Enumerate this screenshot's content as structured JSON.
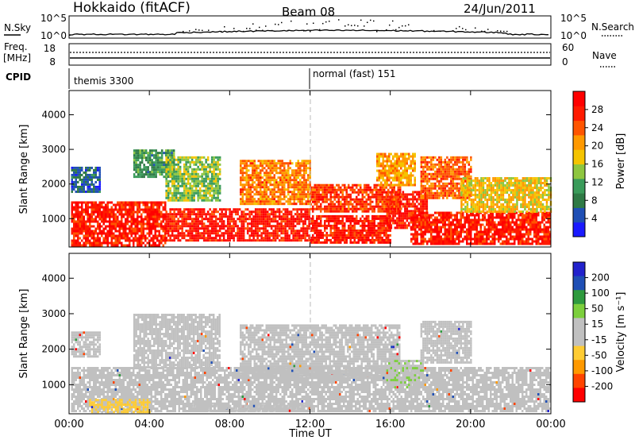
{
  "header": {
    "station": "Hokkaido (fitACF)",
    "beam": "Beam 08",
    "date": "24/Jun/2011"
  },
  "noise_panel": {
    "left_label": "N.Sky",
    "right_label": "N.Search",
    "left_ticks": [
      "10^5",
      "10^0"
    ],
    "right_ticks": [
      "10^5",
      "10^0"
    ]
  },
  "freq_panel": {
    "left_label_1": "Freq.",
    "left_label_2": "[MHz]",
    "right_label": "Nave",
    "left_ticks": [
      "18",
      "8"
    ],
    "right_ticks": [
      "60",
      "0"
    ]
  },
  "cpid_panel": {
    "label": "CPID",
    "modes": [
      {
        "text": "themis 3300",
        "start_hour": 0
      },
      {
        "text": "normal (fast) 151",
        "start_hour": 12
      }
    ]
  },
  "time_axis": {
    "label": "Time UT",
    "ticks": [
      "00:00",
      "04:00",
      "08:00",
      "12:00",
      "16:00",
      "20:00",
      "00:00"
    ],
    "tick_hours": [
      0,
      4,
      8,
      12,
      16,
      20,
      24
    ],
    "range_hours": [
      0,
      24
    ]
  },
  "colors": {
    "power": [
      "#1a1aff",
      "#1f4fb5",
      "#2f7a45",
      "#3a9b5a",
      "#8ec63f",
      "#f5c400",
      "#ff9900",
      "#ff5500",
      "#ff1a00",
      "#ff0000"
    ],
    "velocity": [
      "#ff0000",
      "#ff4400",
      "#ff9900",
      "#ffcc33",
      "#c0c0c0",
      "#c0c0c0",
      "#7ccf3c",
      "#2e9a3e",
      "#1f4fb5",
      "#2222cc"
    ],
    "gray": "#c0c0c0",
    "dash_line": "#bbbbbb"
  },
  "chart_data": [
    {
      "type": "heatmap",
      "quantity": "Power",
      "ylabel": "Slant Range [km]",
      "yticks": [
        "1000",
        "2000",
        "3000",
        "4000"
      ],
      "ytick_values": [
        1000,
        2000,
        3000,
        4000
      ],
      "ylim": [
        180,
        4700
      ],
      "xlim_hours": [
        0,
        24
      ],
      "colorbar": {
        "label": "Power [dB]",
        "ticks": [
          "4",
          "8",
          "12",
          "16",
          "20",
          "24",
          "28"
        ],
        "tick_values": [
          4,
          8,
          12,
          16,
          20,
          24,
          28
        ],
        "range": [
          0,
          32
        ]
      },
      "regions": [
        {
          "t0": 0.1,
          "t1": 4.8,
          "r0": 250,
          "r1": 1500,
          "level": 28
        },
        {
          "t0": 4.8,
          "t1": 12.0,
          "r0": 350,
          "r1": 1300,
          "level": 28
        },
        {
          "t0": 12.0,
          "t1": 16.0,
          "r0": 300,
          "r1": 1100,
          "level": 28
        },
        {
          "t0": 15.8,
          "t1": 17.8,
          "r0": 700,
          "r1": 1800,
          "level": 28
        },
        {
          "t0": 17.0,
          "t1": 24.0,
          "r0": 250,
          "r1": 1200,
          "level": 28
        },
        {
          "t0": 0.1,
          "t1": 1.5,
          "r0": 1800,
          "r1": 2500,
          "level": 6
        },
        {
          "t0": 3.2,
          "t1": 5.2,
          "r0": 2200,
          "r1": 3000,
          "level": 10
        },
        {
          "t0": 4.8,
          "t1": 7.5,
          "r0": 1500,
          "r1": 2800,
          "level": 14
        },
        {
          "t0": 8.5,
          "t1": 12.0,
          "r0": 1400,
          "r1": 2700,
          "level": 22
        },
        {
          "t0": 12.0,
          "t1": 16.5,
          "r0": 1200,
          "r1": 2000,
          "level": 26
        },
        {
          "t0": 15.3,
          "t1": 17.2,
          "r0": 2000,
          "r1": 2900,
          "level": 20
        },
        {
          "t0": 17.5,
          "t1": 20.0,
          "r0": 1600,
          "r1": 2800,
          "level": 24
        },
        {
          "t0": 19.5,
          "t1": 24.0,
          "r0": 1200,
          "r1": 2200,
          "level": 18
        }
      ]
    },
    {
      "type": "heatmap",
      "quantity": "Velocity",
      "ylabel": "Slant Range [km]",
      "yticks": [
        "1000",
        "2000",
        "3000",
        "4000"
      ],
      "ytick_values": [
        1000,
        2000,
        3000,
        4000
      ],
      "ylim": [
        180,
        4700
      ],
      "xlim_hours": [
        0,
        24
      ],
      "colorbar": {
        "label": "Velocity [m s⁻¹]",
        "ticks": [
          "200",
          "100",
          "50",
          "15",
          "-15",
          "-50",
          "-100",
          "-200"
        ],
        "tick_values": [
          200,
          100,
          50,
          15,
          -15,
          -50,
          -100,
          -200
        ],
        "range": [
          -250,
          250
        ]
      },
      "regions": [
        {
          "t0": 0.1,
          "t1": 24.0,
          "r0": 250,
          "r1": 1500,
          "level": 0
        },
        {
          "t0": 0.1,
          "t1": 1.5,
          "r0": 1800,
          "r1": 2500,
          "level": 0
        },
        {
          "t0": 3.2,
          "t1": 7.5,
          "r0": 1500,
          "r1": 3000,
          "level": 0
        },
        {
          "t0": 8.5,
          "t1": 16.5,
          "r0": 1200,
          "r1": 2700,
          "level": 0
        },
        {
          "t0": 15.8,
          "t1": 17.6,
          "r0": 900,
          "r1": 1700,
          "level": 40
        },
        {
          "t0": 17.5,
          "t1": 20.0,
          "r0": 1600,
          "r1": 2800,
          "level": 25
        },
        {
          "t0": 1.0,
          "t1": 4.0,
          "r0": 250,
          "r1": 600,
          "level": -60
        },
        {
          "t0": 6.0,
          "t1": 12.0,
          "r0": 250,
          "r1": 500,
          "level": 30
        }
      ]
    }
  ]
}
